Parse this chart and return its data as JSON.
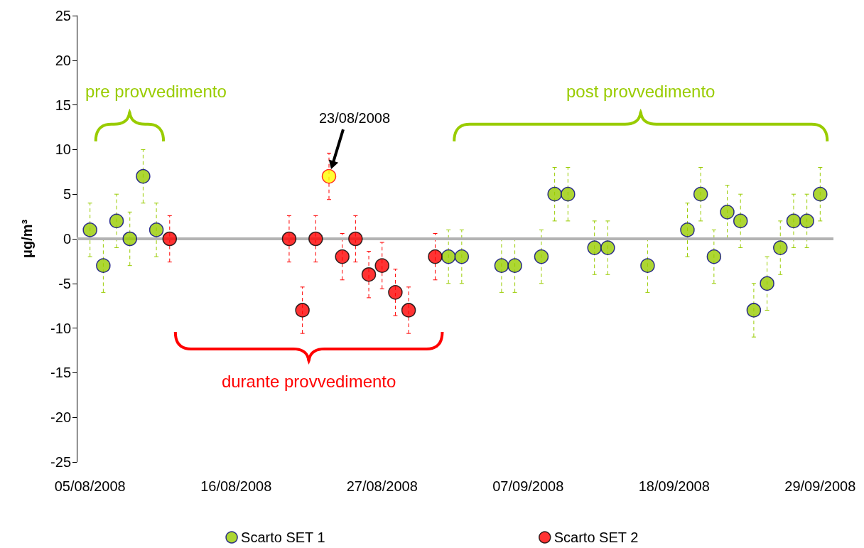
{
  "chart_data": {
    "type": "scatter",
    "ylabel": "μg/m³",
    "xlim": [
      "2008-08-04",
      "2008-09-30"
    ],
    "xticks": [
      {
        "value": "2008-08-05",
        "label": "05/08/2008"
      },
      {
        "value": "2008-08-16",
        "label": "16/08/2008"
      },
      {
        "value": "2008-08-27",
        "label": "27/08/2008"
      },
      {
        "value": "2008-09-07",
        "label": "07/09/2008"
      },
      {
        "value": "2008-09-18",
        "label": "18/09/2008"
      },
      {
        "value": "2008-09-29",
        "label": "29/09/2008"
      }
    ],
    "ylim": [
      -25,
      25
    ],
    "yticks": [
      -25,
      -20,
      -15,
      -10,
      -5,
      0,
      5,
      10,
      15,
      20,
      25
    ],
    "grid": false,
    "legend": "bottom",
    "marker": "circle",
    "ref_lines": [
      {
        "axis": "y",
        "value": 0,
        "color": "#b3b3b3"
      }
    ],
    "annotations": [
      "pre provvedimento",
      "durante provvedimento",
      "post provvedimento",
      "23/08/2008"
    ],
    "series": [
      {
        "name": "Scarto SET 1",
        "color": "#99cc00",
        "x": [
          "2008-08-05",
          "2008-08-06",
          "2008-08-07",
          "2008-08-08",
          "2008-08-09",
          "2008-08-10",
          "2008-09-01",
          "2008-09-02",
          "2008-09-05",
          "2008-09-06",
          "2008-09-08",
          "2008-09-09",
          "2008-09-10",
          "2008-09-12",
          "2008-09-13",
          "2008-09-16",
          "2008-09-19",
          "2008-09-20",
          "2008-09-21",
          "2008-09-22",
          "2008-09-23",
          "2008-09-24",
          "2008-09-25",
          "2008-09-26",
          "2008-09-27",
          "2008-09-28",
          "2008-09-29"
        ],
        "values": [
          1,
          -3,
          2,
          0,
          7,
          1,
          -2,
          -2,
          -3,
          -3,
          -2,
          5,
          5,
          -1,
          -1,
          -3,
          1,
          5,
          -2,
          3,
          2,
          -8,
          -5,
          -1,
          2,
          2,
          5
        ],
        "errors": [
          3,
          3,
          3,
          3,
          3,
          3,
          3,
          3,
          3,
          3,
          3,
          3,
          3,
          3,
          3,
          3,
          3,
          3,
          3,
          3,
          3,
          3,
          3,
          3,
          3,
          3,
          3
        ]
      },
      {
        "name": "Scarto SET 2",
        "color": "#ff0000",
        "x": [
          "2008-08-11",
          "2008-08-20",
          "2008-08-21",
          "2008-08-22",
          "2008-08-23",
          "2008-08-24",
          "2008-08-25",
          "2008-08-26",
          "2008-08-27",
          "2008-08-28",
          "2008-08-29",
          "2008-08-31"
        ],
        "values": [
          0,
          0,
          -8,
          0,
          7,
          -2,
          0,
          -4,
          -3,
          -6,
          -8,
          -2
        ],
        "errors": [
          2.6,
          2.6,
          2.6,
          2.6,
          2.6,
          2.6,
          2.6,
          2.6,
          2.6,
          2.6,
          2.6,
          2.6
        ],
        "colors": [
          "#ff0000",
          "#ff0000",
          "#ff0000",
          "#ff0000",
          "#ffff00",
          "#ff0000",
          "#ff0000",
          "#ff0000",
          "#ff0000",
          "#ff0000",
          "#ff0000",
          "#ff0000"
        ]
      }
    ]
  }
}
